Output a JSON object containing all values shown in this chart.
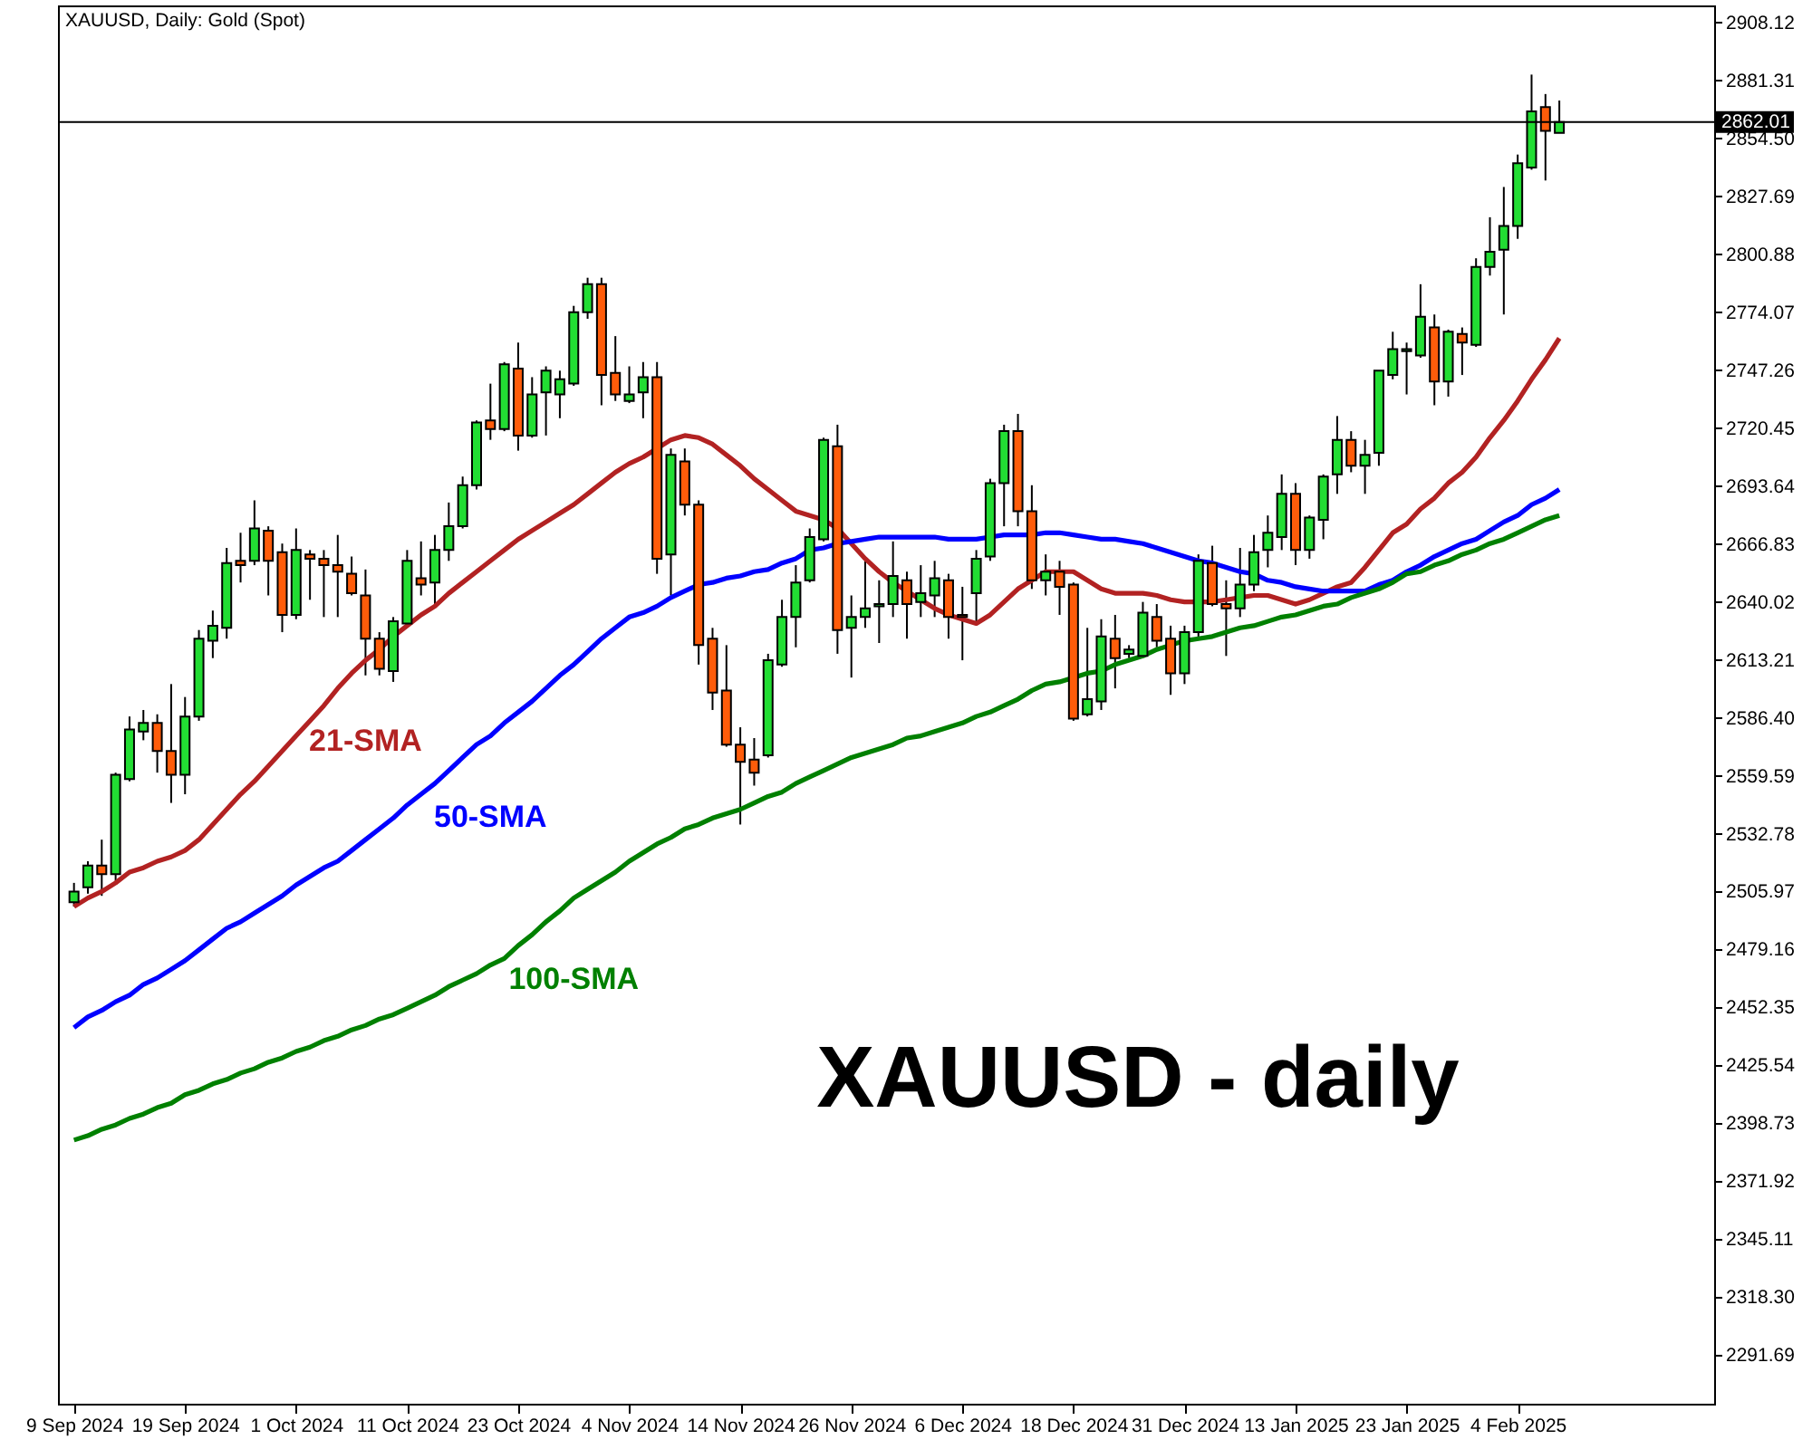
{
  "chart_data": {
    "type": "candlestick",
    "title": "XAUUSD, Daily:  Gold (Spot)",
    "categories": [
      "9 Sep 2024",
      null,
      null,
      null,
      null,
      null,
      null,
      null,
      "19 Sep 2024",
      null,
      null,
      null,
      null,
      null,
      null,
      null,
      "1 Oct 2024",
      null,
      null,
      null,
      null,
      null,
      null,
      null,
      "11 Oct 2024",
      null,
      null,
      null,
      null,
      null,
      null,
      null,
      "23 Oct 2024",
      null,
      null,
      null,
      null,
      null,
      null,
      null,
      "4 Nov 2024",
      null,
      null,
      null,
      null,
      null,
      null,
      null,
      "14 Nov 2024",
      null,
      null,
      null,
      null,
      null,
      null,
      null,
      "26 Nov 2024",
      null,
      null,
      null,
      null,
      null,
      null,
      null,
      "6 Dec 2024",
      null,
      null,
      null,
      null,
      null,
      null,
      null,
      "18 Dec 2024",
      null,
      null,
      null,
      null,
      null,
      null,
      null,
      "31 Dec 2024",
      null,
      null,
      null,
      null,
      null,
      null,
      null,
      "13 Jan 2025",
      null,
      null,
      null,
      null,
      null,
      null,
      null,
      "23 Jan 2025",
      null,
      null,
      null,
      null,
      null,
      null,
      null,
      "4 Feb 2025",
      null,
      null,
      null
    ],
    "ohlc": [
      [
        2501,
        2510,
        2499,
        2506
      ],
      [
        2508,
        2520,
        2505,
        2518
      ],
      [
        2518,
        2530,
        2504,
        2514
      ],
      [
        2514,
        2561,
        2511,
        2560
      ],
      [
        2558,
        2587,
        2557,
        2581
      ],
      [
        2580,
        2590,
        2576,
        2584
      ],
      [
        2584,
        2588,
        2561,
        2571
      ],
      [
        2571,
        2602,
        2547,
        2560
      ],
      [
        2560,
        2596,
        2551,
        2587
      ],
      [
        2587,
        2627,
        2585,
        2623
      ],
      [
        2622,
        2636,
        2614,
        2629
      ],
      [
        2628,
        2665,
        2623,
        2658
      ],
      [
        2659,
        2672,
        2649,
        2657
      ],
      [
        2659,
        2687,
        2657,
        2674
      ],
      [
        2673,
        2675,
        2643,
        2659
      ],
      [
        2663,
        2667,
        2626,
        2634
      ],
      [
        2634,
        2674,
        2632,
        2664
      ],
      [
        2662,
        2664,
        2641,
        2660
      ],
      [
        2660,
        2664,
        2633,
        2657
      ],
      [
        2657,
        2671,
        2633,
        2654
      ],
      [
        2653,
        2661,
        2643,
        2644
      ],
      [
        2643,
        2655,
        2606,
        2623
      ],
      [
        2623,
        2626,
        2606,
        2609
      ],
      [
        2608,
        2633,
        2603,
        2631
      ],
      [
        2630,
        2664,
        2629,
        2659
      ],
      [
        2651,
        2668,
        2643,
        2648
      ],
      [
        2649,
        2671,
        2639,
        2664
      ],
      [
        2664,
        2686,
        2659,
        2675
      ],
      [
        2675,
        2698,
        2674,
        2694
      ],
      [
        2694,
        2724,
        2692,
        2723
      ],
      [
        2724,
        2741,
        2715,
        2720
      ],
      [
        2720,
        2751,
        2719,
        2750
      ],
      [
        2748,
        2760,
        2710,
        2717
      ],
      [
        2717,
        2744,
        2716,
        2736
      ],
      [
        2737,
        2749,
        2717,
        2747
      ],
      [
        2736,
        2747,
        2725,
        2743
      ],
      [
        2741,
        2777,
        2740,
        2774
      ],
      [
        2774,
        2790,
        2771,
        2787
      ],
      [
        2787,
        2790,
        2731,
        2745
      ],
      [
        2746,
        2763,
        2733,
        2736
      ],
      [
        2733,
        2749,
        2732,
        2736
      ],
      [
        2737,
        2751,
        2725,
        2744
      ],
      [
        2744,
        2751,
        2653,
        2660
      ],
      [
        2662,
        2711,
        2643,
        2708
      ],
      [
        2705,
        2711,
        2680,
        2685
      ],
      [
        2685,
        2687,
        2611,
        2620
      ],
      [
        2623,
        2628,
        2590,
        2598
      ],
      [
        2599,
        2620,
        2573,
        2574
      ],
      [
        2574,
        2582,
        2537,
        2566
      ],
      [
        2567,
        2577,
        2555,
        2561
      ],
      [
        2569,
        2616,
        2568,
        2613
      ],
      [
        2611,
        2641,
        2610,
        2633
      ],
      [
        2633,
        2657,
        2619,
        2649
      ],
      [
        2650,
        2674,
        2649,
        2670
      ],
      [
        2669,
        2716,
        2668,
        2715
      ],
      [
        2712,
        2722,
        2616,
        2627
      ],
      [
        2628,
        2643,
        2605,
        2633
      ],
      [
        2633,
        2659,
        2628,
        2637
      ],
      [
        2638,
        2650,
        2621,
        2639
      ],
      [
        2639,
        2668,
        2633,
        2652
      ],
      [
        2650,
        2654,
        2623,
        2639
      ],
      [
        2640,
        2657,
        2633,
        2644
      ],
      [
        2643,
        2659,
        2633,
        2651
      ],
      [
        2650,
        2653,
        2623,
        2633
      ],
      [
        2634,
        2647,
        2613,
        2633
      ],
      [
        2644,
        2664,
        2631,
        2660
      ],
      [
        2661,
        2697,
        2659,
        2695
      ],
      [
        2695,
        2722,
        2675,
        2719
      ],
      [
        2719,
        2727,
        2675,
        2682
      ],
      [
        2682,
        2694,
        2646,
        2650
      ],
      [
        2650,
        2662,
        2643,
        2654
      ],
      [
        2654,
        2659,
        2634,
        2647
      ],
      [
        2648,
        2649,
        2585,
        2586
      ],
      [
        2588,
        2628,
        2587,
        2595
      ],
      [
        2594,
        2632,
        2590,
        2624
      ],
      [
        2623,
        2634,
        2600,
        2614
      ],
      [
        2616,
        2620,
        2614,
        2618
      ],
      [
        2615,
        2640,
        2615,
        2635
      ],
      [
        2633,
        2639,
        2619,
        2622
      ],
      [
        2623,
        2629,
        2597,
        2607
      ],
      [
        2607,
        2629,
        2602,
        2626
      ],
      [
        2626,
        2662,
        2623,
        2659
      ],
      [
        2658,
        2666,
        2638,
        2639
      ],
      [
        2639,
        2650,
        2615,
        2637
      ],
      [
        2637,
        2665,
        2633,
        2648
      ],
      [
        2648,
        2671,
        2645,
        2663
      ],
      [
        2664,
        2680,
        2656,
        2672
      ],
      [
        2670,
        2699,
        2664,
        2690
      ],
      [
        2690,
        2695,
        2657,
        2664
      ],
      [
        2664,
        2680,
        2660,
        2679
      ],
      [
        2678,
        2699,
        2669,
        2698
      ],
      [
        2699,
        2726,
        2690,
        2715
      ],
      [
        2715,
        2719,
        2700,
        2703
      ],
      [
        2703,
        2715,
        2690,
        2708
      ],
      [
        2709,
        2747,
        2703,
        2747
      ],
      [
        2745,
        2765,
        2743,
        2757
      ],
      [
        2756,
        2760,
        2736,
        2757
      ],
      [
        2754,
        2787,
        2753,
        2772
      ],
      [
        2767,
        2773,
        2731,
        2742
      ],
      [
        2742,
        2766,
        2735,
        2765
      ],
      [
        2764,
        2767,
        2745,
        2760
      ],
      [
        2759,
        2799,
        2758,
        2795
      ],
      [
        2795,
        2818,
        2791,
        2802
      ],
      [
        2803,
        2832,
        2773,
        2814
      ],
      [
        2814,
        2847,
        2808,
        2843
      ],
      [
        2841,
        2884,
        2840,
        2867
      ],
      [
        2869,
        2875,
        2835,
        2858
      ],
      [
        2857,
        2872,
        2857,
        2862.01
      ]
    ],
    "colors": [
      "#22dd33",
      "#22dd33",
      "#ff5c0a",
      "#22dd33",
      "#22dd33",
      "#22dd33",
      "#ff5c0a",
      "#ff5c0a",
      "#22dd33",
      "#22dd33",
      "#22dd33",
      "#22dd33",
      "#ff5c0a",
      "#22dd33",
      "#ff5c0a",
      "#ff5c0a",
      "#22dd33",
      "#ff5c0a",
      "#ff5c0a",
      "#ff5c0a",
      "#ff5c0a",
      "#ff5c0a",
      "#ff5c0a",
      "#22dd33",
      "#22dd33",
      "#ff5c0a",
      "#22dd33",
      "#22dd33",
      "#22dd33",
      "#22dd33",
      "#ff5c0a",
      "#22dd33",
      "#ff5c0a",
      "#22dd33",
      "#22dd33",
      "#22dd33",
      "#22dd33",
      "#22dd33",
      "#ff5c0a",
      "#ff5c0a",
      "#22dd33",
      "#22dd33",
      "#ff5c0a",
      "#22dd33",
      "#ff5c0a",
      "#ff5c0a",
      "#ff5c0a",
      "#ff5c0a",
      "#ff5c0a",
      "#ff5c0a",
      "#22dd33",
      "#22dd33",
      "#22dd33",
      "#22dd33",
      "#22dd33",
      "#ff5c0a",
      "#22dd33",
      "#22dd33",
      "#22dd33",
      "#22dd33",
      "#ff5c0a",
      "#22dd33",
      "#22dd33",
      "#ff5c0a",
      "#ff5c0a",
      "#22dd33",
      "#22dd33",
      "#22dd33",
      "#ff5c0a",
      "#ff5c0a",
      "#22dd33",
      "#ff5c0a",
      "#ff5c0a",
      "#22dd33",
      "#22dd33",
      "#ff5c0a",
      "#22dd33",
      "#22dd33",
      "#ff5c0a",
      "#ff5c0a",
      "#22dd33",
      "#22dd33",
      "#ff5c0a",
      "#ff5c0a",
      "#22dd33",
      "#22dd33",
      "#22dd33",
      "#22dd33",
      "#ff5c0a",
      "#22dd33",
      "#22dd33",
      "#22dd33",
      "#ff5c0a",
      "#22dd33",
      "#22dd33",
      "#22dd33",
      "#22dd33",
      "#22dd33",
      "#ff5c0a",
      "#22dd33",
      "#ff5c0a",
      "#22dd33",
      "#22dd33",
      "#22dd33",
      "#22dd33",
      "#22dd33",
      "#ff5c0a",
      "#22dd33"
    ],
    "series": [
      {
        "name": "21-SMA",
        "type": "line",
        "color": "#b22222",
        "values": [
          2499,
          2503,
          2506,
          2510,
          2515,
          2517,
          2520,
          2522,
          2525,
          2530,
          2537,
          2544,
          2551,
          2557,
          2564,
          2571,
          2578,
          2585,
          2592,
          2600,
          2607,
          2613,
          2618,
          2624,
          2629,
          2634,
          2638,
          2644,
          2649,
          2654,
          2659,
          2664,
          2669,
          2673,
          2677,
          2681,
          2685,
          2690,
          2695,
          2700,
          2704,
          2707,
          2711,
          2715,
          2717,
          2716,
          2713,
          2708,
          2703,
          2697,
          2692,
          2687,
          2682,
          2680,
          2678,
          2674,
          2667,
          2660,
          2654,
          2649,
          2645,
          2641,
          2637,
          2634,
          2632,
          2630,
          2634,
          2640,
          2646,
          2650,
          2654,
          2654,
          2654,
          2650,
          2646,
          2644,
          2644,
          2644,
          2643,
          2641,
          2640,
          2640,
          2640,
          2641,
          2642,
          2643,
          2643,
          2641,
          2639,
          2641,
          2644,
          2647,
          2649,
          2656,
          2664,
          2672,
          2676,
          2683,
          2688,
          2695,
          2700,
          2707,
          2716,
          2724,
          2733,
          2743,
          2752,
          2762
        ]
      },
      {
        "name": "50-SMA",
        "type": "line",
        "color": "#0000ff",
        "values": [
          2443,
          2448,
          2451,
          2455,
          2458,
          2463,
          2466,
          2470,
          2474,
          2479,
          2484,
          2489,
          2492,
          2496,
          2500,
          2504,
          2509,
          2513,
          2517,
          2520,
          2525,
          2530,
          2535,
          2540,
          2546,
          2551,
          2556,
          2562,
          2568,
          2574,
          2578,
          2584,
          2589,
          2594,
          2600,
          2606,
          2611,
          2617,
          2623,
          2628,
          2633,
          2635,
          2638,
          2642,
          2645,
          2648,
          2649,
          2651,
          2652,
          2654,
          2655,
          2658,
          2660,
          2664,
          2665,
          2667,
          2668,
          2669,
          2670,
          2670,
          2670,
          2670,
          2670,
          2669,
          2669,
          2669,
          2670,
          2671,
          2671,
          2671,
          2672,
          2672,
          2671,
          2670,
          2669,
          2669,
          2668,
          2667,
          2665,
          2663,
          2661,
          2659,
          2658,
          2656,
          2654,
          2653,
          2650,
          2649,
          2647,
          2646,
          2645,
          2645,
          2645,
          2645,
          2648,
          2650,
          2654,
          2657,
          2661,
          2664,
          2667,
          2669,
          2673,
          2677,
          2680,
          2685,
          2688,
          2692
        ]
      },
      {
        "name": "100-SMA",
        "type": "line",
        "color": "#008000",
        "values": [
          2391,
          2393,
          2396,
          2398,
          2401,
          2403,
          2406,
          2408,
          2412,
          2414,
          2417,
          2419,
          2422,
          2424,
          2427,
          2429,
          2432,
          2434,
          2437,
          2439,
          2442,
          2444,
          2447,
          2449,
          2452,
          2455,
          2458,
          2462,
          2465,
          2468,
          2472,
          2475,
          2481,
          2486,
          2492,
          2497,
          2503,
          2507,
          2511,
          2515,
          2520,
          2524,
          2528,
          2531,
          2535,
          2537,
          2540,
          2542,
          2544,
          2547,
          2550,
          2552,
          2556,
          2559,
          2562,
          2565,
          2568,
          2570,
          2572,
          2574,
          2577,
          2578,
          2580,
          2582,
          2584,
          2587,
          2589,
          2592,
          2595,
          2599,
          2602,
          2603,
          2605,
          2607,
          2608,
          2611,
          2613,
          2615,
          2618,
          2620,
          2622,
          2623,
          2624,
          2626,
          2628,
          2629,
          2631,
          2633,
          2634,
          2636,
          2638,
          2639,
          2642,
          2644,
          2646,
          2649,
          2653,
          2654,
          2657,
          2659,
          2662,
          2664,
          2667,
          2669,
          2672,
          2675,
          2678,
          2680
        ]
      }
    ],
    "ylim": [
      2269,
      2916
    ],
    "yticks": [
      2291.69,
      {
        "value": 2318.3,
        "label": "2318.30"
      },
      2345.11,
      2371.92,
      2398.73,
      2425.54,
      2452.35,
      2479.16,
      2505.97,
      2532.78,
      2559.59,
      {
        "value": 2586.4,
        "label": "2586.40"
      },
      2613.21,
      2640.02,
      2666.83,
      2693.64,
      2720.45,
      2747.26,
      2774.07,
      2800.88,
      2827.69,
      {
        "value": 2854.5,
        "label": "2854.50"
      },
      2881.31,
      2908.12
    ],
    "ref_lines": [
      {
        "axis": "y",
        "value": 2862.01,
        "label": "2862.01",
        "color": "#000000"
      }
    ],
    "annotations": [
      "XAUUSD - daily"
    ]
  }
}
